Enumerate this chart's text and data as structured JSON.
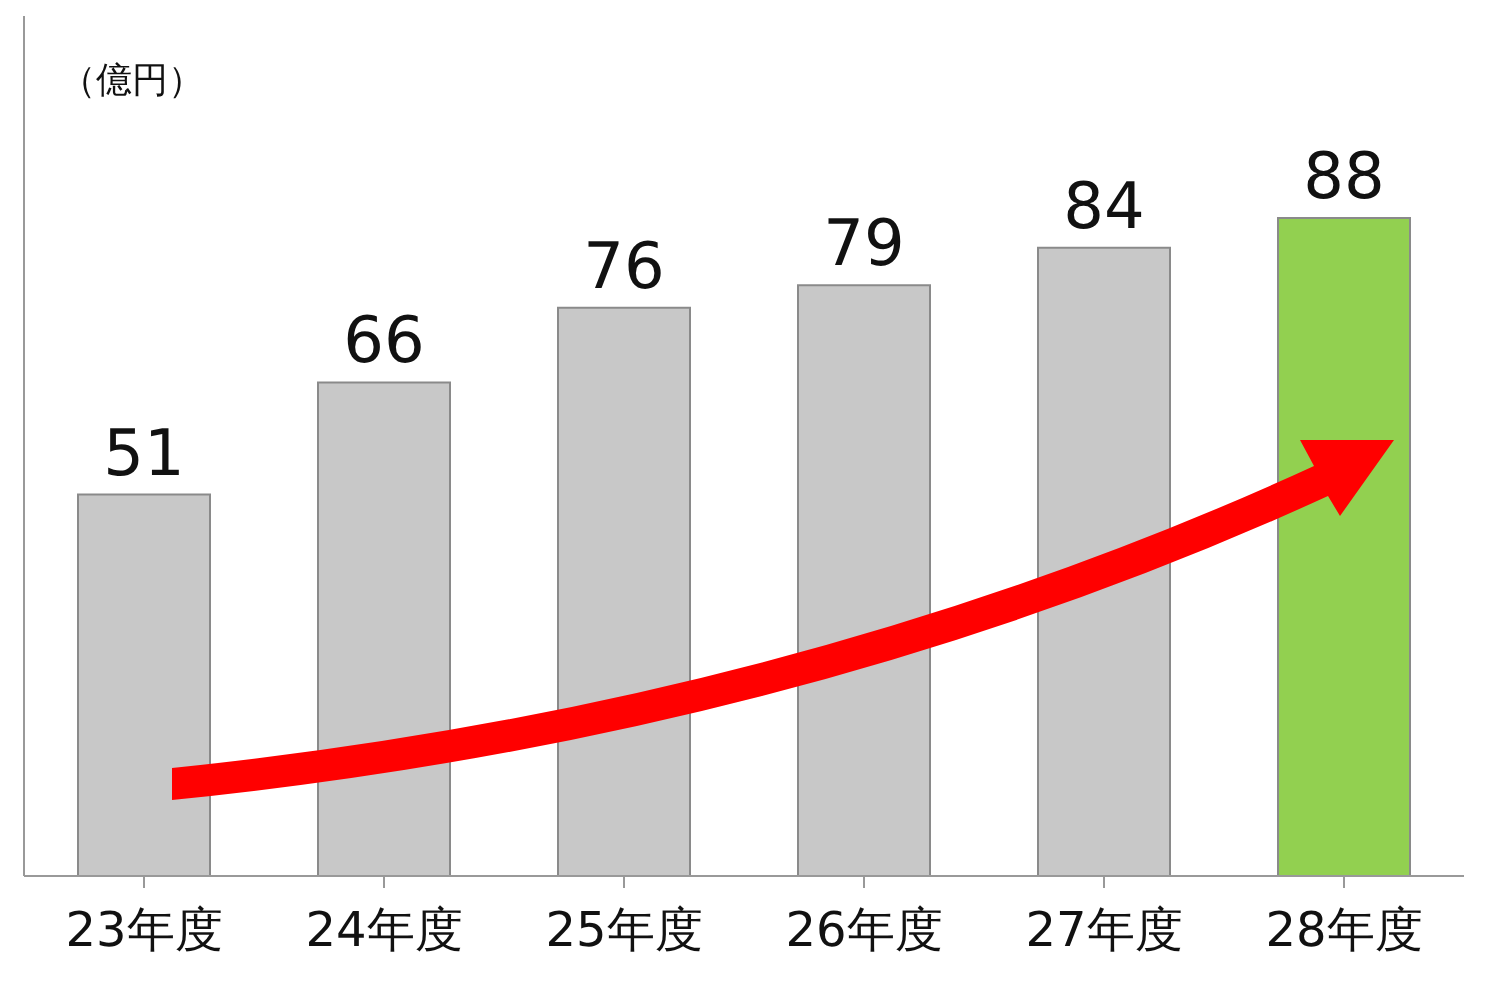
{
  "chart_data": {
    "type": "bar",
    "ylabel": "（億円）",
    "categories": [
      "23年度",
      "24年度",
      "25年度",
      "26年度",
      "27年度",
      "28年度"
    ],
    "values": [
      51,
      66,
      76,
      79,
      84,
      88
    ],
    "colors": [
      "#c8c8c8",
      "#c8c8c8",
      "#c8c8c8",
      "#c8c8c8",
      "#c8c8c8",
      "#92d050"
    ],
    "ylim": [
      0,
      115
    ],
    "data_labels": true,
    "tick_labels": "x",
    "grid": false,
    "legend": false
  }
}
